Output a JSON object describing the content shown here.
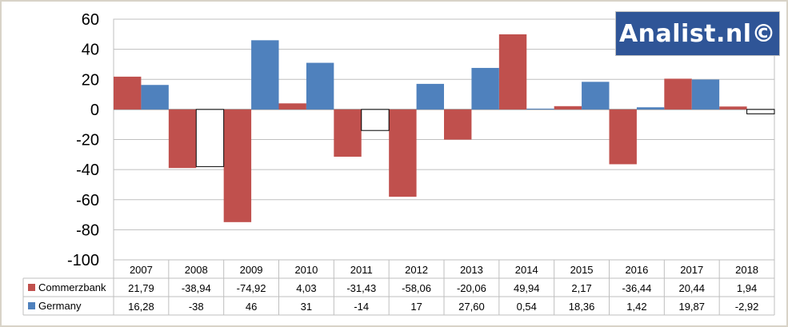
{
  "logo": {
    "text": "Analist.nl©"
  },
  "chart_data": {
    "type": "bar",
    "categories": [
      "2007",
      "2008",
      "2009",
      "2010",
      "2011",
      "2012",
      "2013",
      "2014",
      "2015",
      "2016",
      "2017",
      "2018"
    ],
    "series": [
      {
        "name": "Commerzbank",
        "color": "#c0504d",
        "values": [
          21.79,
          -38.94,
          -74.92,
          4.03,
          -31.43,
          -58.06,
          -20.06,
          49.94,
          2.17,
          -36.44,
          20.44,
          1.94
        ],
        "labels": [
          "21,79",
          "-38,94",
          "-74,92",
          "4,03",
          "-31,43",
          "-58,06",
          "-20,06",
          "49,94",
          "2,17",
          "-36,44",
          "20,44",
          "1,94"
        ]
      },
      {
        "name": "Germany",
        "color": "#4f81bd",
        "values": [
          16.28,
          -38,
          46,
          31,
          -14,
          17,
          27.6,
          0.54,
          18.36,
          1.42,
          19.87,
          -2.92
        ],
        "labels": [
          "16,28",
          "-38",
          "46",
          "31",
          "-14",
          "17",
          "27,60",
          "0,54",
          "18,36",
          "1,42",
          "19,87",
          "-2,92"
        ]
      }
    ],
    "negative_fill_series": "Germany",
    "ylim": [
      -100,
      60
    ],
    "yticks": [
      "60",
      "40",
      "20",
      "0",
      "-20",
      "-40",
      "-60",
      "-80",
      "-100"
    ],
    "grid": true,
    "legend": "data-table"
  }
}
